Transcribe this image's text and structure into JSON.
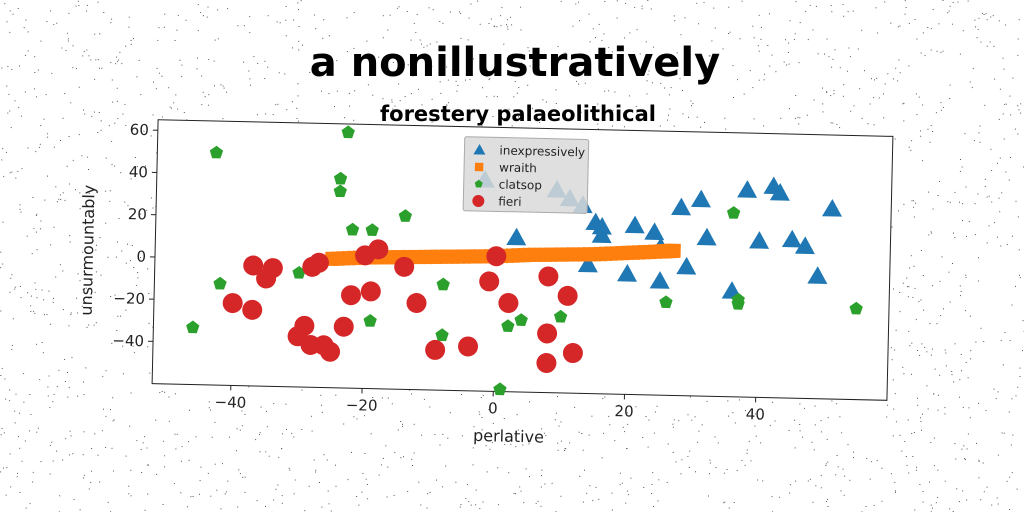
{
  "chart_data": {
    "type": "scatter",
    "title": "a nonillustratively",
    "subtitle": "forestery palaeolithical",
    "xlabel": "perlative",
    "ylabel": "unsurmountably",
    "xlim": [
      -52,
      60
    ],
    "ylim": [
      -60,
      65
    ],
    "xticks": [
      -40,
      -20,
      0,
      20,
      40
    ],
    "yticks": [
      -40,
      -20,
      0,
      20,
      40,
      60
    ],
    "xtick_labels": [
      "−40",
      "−20",
      "0",
      "20",
      "40"
    ],
    "ytick_labels": [
      "−40",
      "−20",
      "0",
      "20",
      "40",
      "60"
    ],
    "grid": false,
    "legend_position": "upper-center",
    "series": [
      {
        "name": "inexpressively",
        "marker": "triangle",
        "color": "#1f77b4",
        "x": [
          -2,
          3,
          9,
          11,
          13,
          15,
          16,
          16,
          14,
          20,
          21,
          24,
          25,
          25,
          28,
          29,
          31,
          32,
          36,
          38,
          40,
          42,
          43,
          45,
          47,
          49,
          51
        ],
        "y": [
          40,
          13,
          36,
          32,
          29,
          21,
          19,
          15,
          1,
          -3,
          20,
          17,
          10,
          -6,
          29,
          1,
          33,
          15,
          -10,
          38,
          14,
          40,
          37,
          15,
          12,
          -2,
          30
        ]
      },
      {
        "name": "wraith",
        "marker": "square",
        "color": "#ff7f0e",
        "x": [
          -25,
          -20,
          -15,
          -10,
          -5,
          0,
          5,
          10,
          15,
          20,
          25,
          27
        ],
        "y": [
          1,
          2,
          2.5,
          3,
          3.5,
          4,
          5,
          5.5,
          6,
          7,
          8,
          8.5
        ]
      },
      {
        "name": "clatsop",
        "marker": "pentagon",
        "color": "#2ca02c",
        "x": [
          -43,
          -42,
          -46,
          -30,
          -24,
          -24,
          -22,
          -23,
          -19,
          -19,
          -14,
          -8,
          -8,
          1,
          2,
          4,
          10,
          26,
          36,
          37,
          37,
          55
        ],
        "y": [
          50,
          -12,
          -33,
          -6,
          33,
          39,
          15,
          61,
          15,
          -28,
          22,
          -10,
          -34,
          -59,
          -29,
          -26,
          -24,
          -16,
          27,
          -16,
          -14,
          -17
        ]
      },
      {
        "name": "fieri",
        "marker": "circle",
        "color": "#d62728",
        "x": [
          -40,
          -37,
          -37,
          -35,
          -34,
          -30,
          -29,
          -28,
          -28,
          -27,
          -26,
          -25,
          -23,
          -22,
          -20,
          -19,
          -18,
          -14,
          -12,
          -9,
          -4,
          -1,
          0,
          2,
          8,
          8,
          8,
          11,
          12
        ],
        "y": [
          -21,
          -3,
          -24,
          -9,
          -4,
          -36,
          -31,
          -3,
          -40,
          -1,
          -40,
          -43,
          -31,
          -16,
          3,
          -14,
          6,
          -2,
          -19,
          -41,
          -39,
          -8,
          4,
          -18,
          -5,
          -32,
          -46,
          -14,
          -41
        ]
      }
    ]
  }
}
